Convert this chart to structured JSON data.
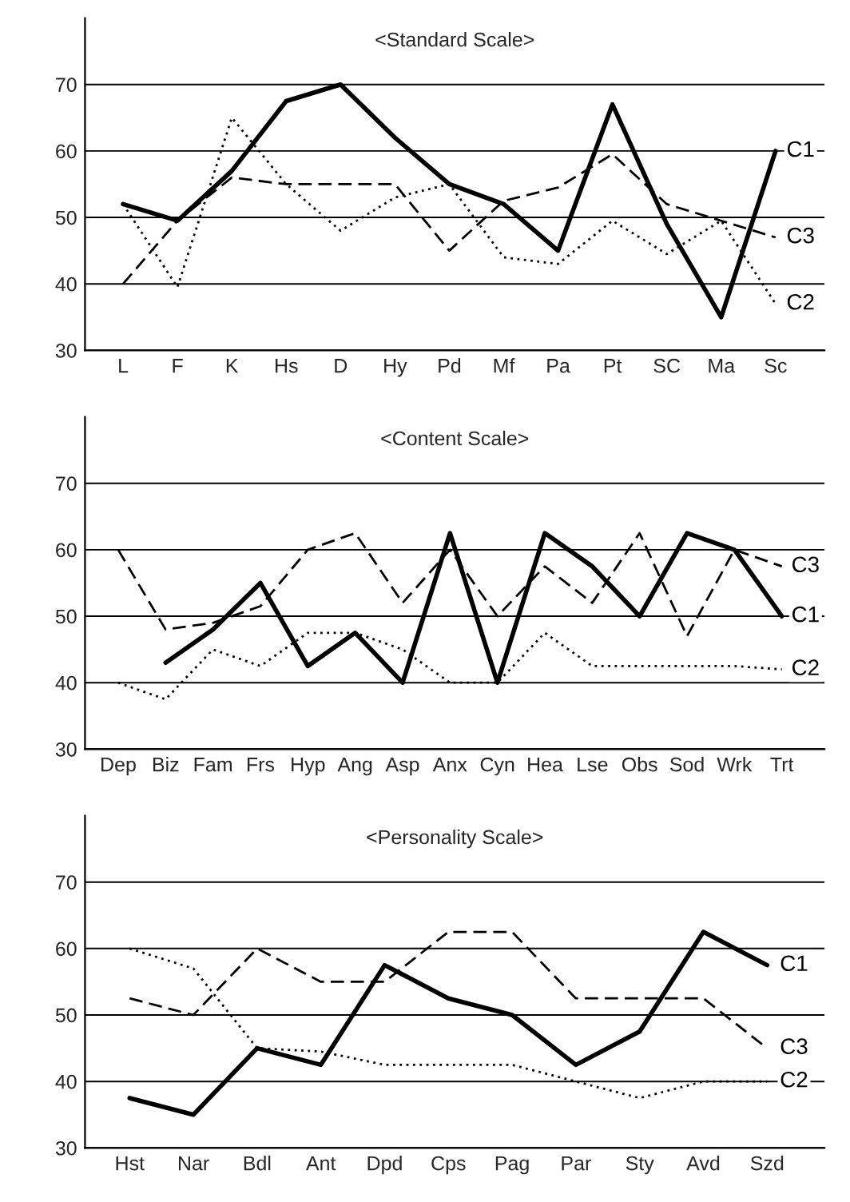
{
  "chart_data": [
    {
      "type": "line",
      "title": "<Standard Scale>",
      "categories": [
        "L",
        "F",
        "K",
        "Hs",
        "D",
        "Hy",
        "Pd",
        "Mf",
        "Pa",
        "Pt",
        "SC",
        "Ma",
        "Sc"
      ],
      "ylim": [
        30,
        80
      ],
      "yticks": [
        30,
        40,
        50,
        60,
        70
      ],
      "grid": "y",
      "series": [
        {
          "name": "C1",
          "color": "#000000",
          "line_style": "solid",
          "values": [
            52,
            49.5,
            57,
            67.5,
            70,
            62,
            55,
            52,
            45,
            67,
            49,
            35,
            60
          ]
        },
        {
          "name": "C2",
          "color": "#000000",
          "line_style": "dotted",
          "values": [
            52,
            39.5,
            65,
            55,
            48,
            53,
            55,
            44,
            43,
            49.5,
            44.5,
            49.5,
            37
          ]
        },
        {
          "name": "C3",
          "color": "#000000",
          "line_style": "dashed",
          "values": [
            40,
            49.5,
            56,
            55,
            55,
            55,
            45,
            52.5,
            54.5,
            59.5,
            52,
            49.5,
            47
          ]
        }
      ]
    },
    {
      "type": "line",
      "title": "<Content Scale>",
      "categories": [
        "Dep",
        "Biz",
        "Fam",
        "Frs",
        "Hyp",
        "Ang",
        "Asp",
        "Anx",
        "Cyn",
        "Hea",
        "Lse",
        "Obs",
        "Sod",
        "Wrk",
        "Trt"
      ],
      "ylim": [
        30,
        80
      ],
      "yticks": [
        30,
        40,
        50,
        60,
        70
      ],
      "grid": "y",
      "series": [
        {
          "name": "C1",
          "color": "#000000",
          "line_style": "solid",
          "values": [
            null,
            43,
            48,
            55,
            42.5,
            47.5,
            40,
            62.5,
            40,
            62.5,
            57.5,
            50,
            62.5,
            60,
            50
          ]
        },
        {
          "name": "C2",
          "color": "#000000",
          "line_style": "dotted",
          "values": [
            40,
            37.5,
            45,
            42.5,
            47.5,
            47.5,
            45,
            40,
            40,
            47.5,
            42.5,
            42.5,
            42.5,
            42.5,
            42
          ]
        },
        {
          "name": "C3",
          "color": "#000000",
          "line_style": "dashed",
          "values": [
            60,
            48,
            49,
            51.5,
            60,
            62.5,
            52,
            60,
            50,
            57.5,
            52,
            62.5,
            47,
            60,
            57.5
          ]
        }
      ]
    },
    {
      "type": "line",
      "title": "<Personality Scale>",
      "categories": [
        "Hst",
        "Nar",
        "Bdl",
        "Ant",
        "Dpd",
        "Cps",
        "Pag",
        "Par",
        "Sty",
        "Avd",
        "Szd"
      ],
      "ylim": [
        30,
        80
      ],
      "yticks": [
        30,
        40,
        50,
        60,
        70
      ],
      "grid": "y",
      "series": [
        {
          "name": "C1",
          "color": "#000000",
          "line_style": "solid",
          "values": [
            37.5,
            35,
            45,
            42.5,
            57.5,
            52.5,
            50,
            42.5,
            47.5,
            62.5,
            57.5
          ]
        },
        {
          "name": "C2",
          "color": "#000000",
          "line_style": "dotted",
          "values": [
            60,
            57,
            45,
            44.5,
            42.5,
            42.5,
            42.5,
            40,
            37.5,
            40,
            40
          ]
        },
        {
          "name": "C3",
          "color": "#000000",
          "line_style": "dashed",
          "values": [
            52.5,
            50,
            60,
            55,
            55,
            62.5,
            62.5,
            52.5,
            52.5,
            52.5,
            45
          ]
        }
      ]
    }
  ]
}
